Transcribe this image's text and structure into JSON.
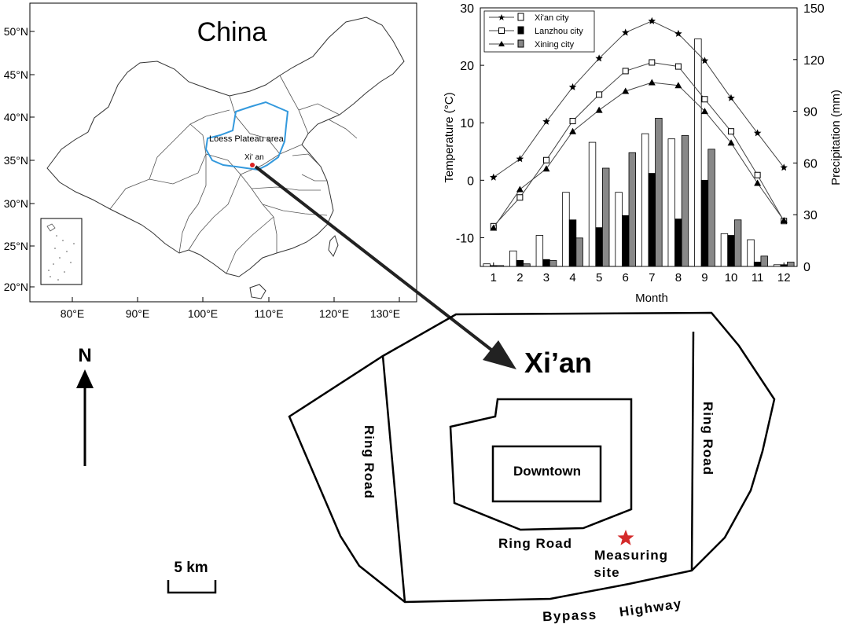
{
  "china_map": {
    "title": "China",
    "lat_labels": [
      "50°N",
      "45°N",
      "40°N",
      "35°N",
      "30°N",
      "25°N",
      "20°N"
    ],
    "lon_labels": [
      "80°E",
      "90°E",
      "100°E",
      "110°E",
      "120°E",
      "130°E"
    ],
    "region_label": "Loess Plateau area",
    "city_label": "Xi' an",
    "region_color": "#3399dd",
    "city_color": "#dd2222"
  },
  "north_arrow": {
    "label": "N"
  },
  "scale_bar": {
    "label": "5 km"
  },
  "city_map": {
    "title": "Xi’an",
    "downtown": "Downtown",
    "ring_road_left": "Ring Road",
    "ring_road_right": "Ring Road",
    "ring_road_inner": "Ring Road",
    "site_line1": "Measuring",
    "site_line2": "site",
    "bypass_word1": "Bypass",
    "bypass_word2": "Highway",
    "site_color": "#d42a2a"
  },
  "chart_data": {
    "type": "line",
    "xlabel": "Month",
    "ylabel": "Temperature (°C)",
    "y2label": "Precipitation (mm)",
    "categories": [
      1,
      2,
      3,
      4,
      5,
      6,
      7,
      8,
      9,
      10,
      11,
      12
    ],
    "ylim": [
      -15,
      30
    ],
    "y2lim": [
      0,
      150
    ],
    "yticks": [
      -10,
      0,
      10,
      20,
      30
    ],
    "y2ticks": [
      0,
      30,
      60,
      90,
      120,
      150
    ],
    "legend_position": "top-left",
    "temperature_series": [
      {
        "name": "Xi'an city",
        "marker": "star",
        "values": [
          0.5,
          3.7,
          10.2,
          16.2,
          21.2,
          25.7,
          27.7,
          25.5,
          20.8,
          14.3,
          8.2,
          2.2
        ]
      },
      {
        "name": "Lanzhou city",
        "marker": "square",
        "values": [
          -8.0,
          -3.0,
          3.5,
          10.3,
          14.9,
          19.0,
          20.5,
          19.8,
          14.1,
          8.5,
          0.9,
          -7.1
        ]
      },
      {
        "name": "Xining city",
        "marker": "triangle",
        "values": [
          -8.3,
          -1.6,
          2.0,
          8.5,
          12.2,
          15.5,
          17.0,
          16.5,
          12.0,
          6.5,
          -0.5,
          -7.0
        ]
      }
    ],
    "precipitation_series": [
      {
        "name": "Xi'an city",
        "fill": "#ffffff",
        "values": [
          1.5,
          9.0,
          18.0,
          43.0,
          72.0,
          43.0,
          77.0,
          74.0,
          132.0,
          19.0,
          15.5,
          1.0
        ]
      },
      {
        "name": "Lanzhou city",
        "fill": "#000000",
        "values": [
          0.5,
          3.5,
          4.0,
          27.0,
          22.5,
          29.5,
          54.0,
          27.5,
          50.0,
          18.0,
          2.5,
          1.0
        ]
      },
      {
        "name": "Xining city",
        "fill": "#888888",
        "values": [
          0.5,
          1.5,
          3.5,
          16.5,
          57.0,
          66.0,
          86.0,
          76.0,
          68.0,
          27.0,
          6.0,
          2.5
        ]
      }
    ]
  }
}
